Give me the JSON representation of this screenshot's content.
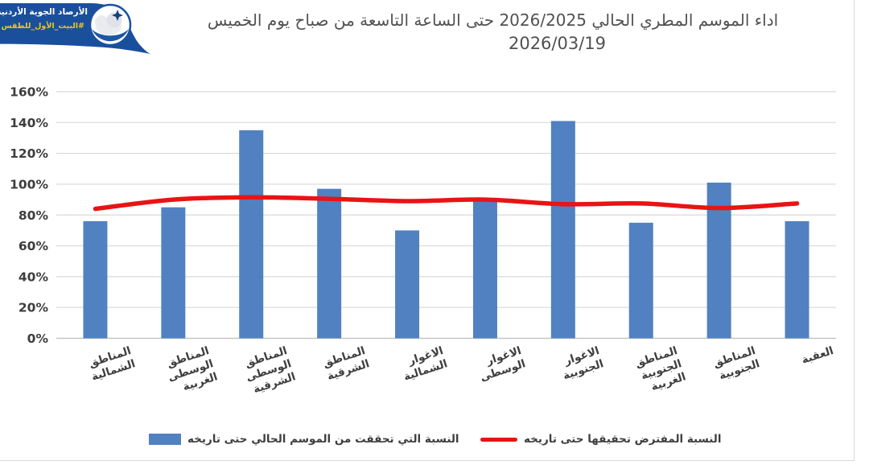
{
  "header": {
    "logo": {
      "org_name": "الأرصاد الجوية الأردنية",
      "hashtag": "#البيت_الأول_للطقس"
    },
    "title_line1": "اداء الموسم المطري الحالي 2026/2025 حتى الساعة التاسعة من صباح يوم الخميس",
    "title_line2": "2026/03/19"
  },
  "chart_data": {
    "type": "bar",
    "title": "اداء الموسم المطري الحالي 2026/2025 حتى الساعة التاسعة من صباح يوم الخميس 2026/03/19",
    "categories": [
      "المناطق الشمالية",
      "المناطق الوسطى الغربية",
      "المناطق الوسطى الشرقية",
      "المناطق الشرقية",
      "الاغوار الشمالية",
      "الاغوار الوسطى",
      "الاغوار الجنوبية",
      "المناطق الجنوبية الغربية",
      "المناطق الجنوبية",
      "العقبة"
    ],
    "series": [
      {
        "name": "النسبة التي تحققت من الموسم الحالي حتى تاريخه",
        "type": "bar",
        "color": "#5181c1",
        "values": [
          76,
          85,
          135,
          97,
          70,
          90,
          141,
          75,
          101,
          76
        ]
      },
      {
        "name": "النسبة المفترض تحقيقها حتى تاريخه",
        "type": "line",
        "color": "#e81414",
        "values": [
          84,
          90,
          91.5,
          90.5,
          89,
          90,
          87,
          87.5,
          84.5,
          87.5
        ]
      }
    ],
    "xlabel": "",
    "ylabel": "",
    "ylim": [
      0,
      160
    ],
    "ytick_step": 20,
    "yticks": [
      "0%",
      "20%",
      "40%",
      "60%",
      "80%",
      "100%",
      "120%",
      "140%",
      "160%"
    ],
    "ytick_format": "percent",
    "grid": true,
    "legend_position": "bottom"
  },
  "colors": {
    "bar_blue": "#5181c1",
    "line_red": "#e81414",
    "gridline": "#d9d9d9",
    "axis_text": "#3e3e3e",
    "logo_blue": "#1a4f9c",
    "logo_yellow": "#f3c51c"
  }
}
